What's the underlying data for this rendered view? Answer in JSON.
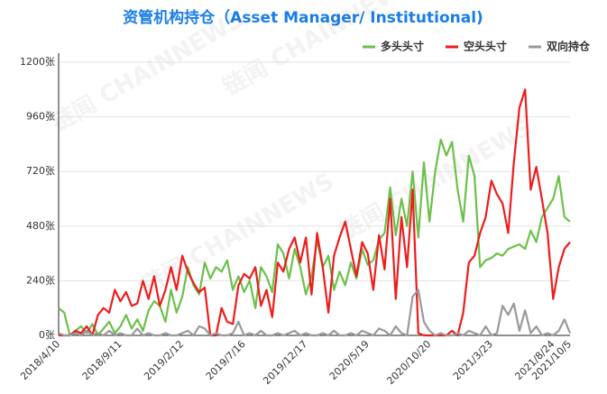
{
  "chart_data": {
    "type": "line",
    "title": "资管机构持仓（Asset Manager/ Institutional)",
    "watermark": "链闻 CHAINNEWS",
    "categories": [
      "2018/4/10",
      null,
      null,
      null,
      null,
      null,
      null,
      null,
      null,
      null,
      null,
      "2018/9/11",
      null,
      null,
      null,
      null,
      null,
      null,
      null,
      null,
      null,
      null,
      "2019/2/12",
      null,
      null,
      null,
      null,
      null,
      null,
      null,
      null,
      null,
      null,
      "2019/7/16",
      null,
      null,
      null,
      null,
      null,
      null,
      null,
      null,
      null,
      null,
      "2019/12/17",
      null,
      null,
      null,
      null,
      null,
      null,
      null,
      null,
      null,
      null,
      "2020/5/19",
      null,
      null,
      null,
      null,
      null,
      null,
      null,
      null,
      null,
      null,
      "2020/10/20",
      null,
      null,
      null,
      null,
      null,
      null,
      null,
      null,
      null,
      null,
      "2021/3/23",
      null,
      null,
      null,
      null,
      null,
      null,
      null,
      null,
      null,
      null,
      "2021/8/24",
      null,
      null,
      "2021/10/5"
    ],
    "series": [
      {
        "name": "多头头寸",
        "color": "#6cc04a",
        "values": [
          120,
          100,
          0,
          20,
          40,
          10,
          50,
          0,
          30,
          60,
          10,
          40,
          90,
          30,
          70,
          20,
          110,
          150,
          130,
          60,
          200,
          100,
          170,
          300,
          220,
          180,
          320,
          250,
          300,
          280,
          330,
          200,
          260,
          190,
          240,
          120,
          300,
          260,
          190,
          400,
          360,
          250,
          380,
          300,
          180,
          260,
          420,
          300,
          350,
          200,
          280,
          220,
          320,
          250,
          380,
          310,
          330,
          420,
          450,
          650,
          440,
          600,
          480,
          720,
          430,
          760,
          500,
          720,
          860,
          790,
          850,
          640,
          500,
          790,
          700,
          300,
          330,
          340,
          360,
          350,
          380,
          390,
          400,
          380,
          460,
          410,
          520,
          560,
          600,
          700,
          520,
          500
        ]
      },
      {
        "name": "空头头寸",
        "color": "#ee1c1c",
        "values": [
          0,
          0,
          0,
          20,
          10,
          40,
          0,
          90,
          120,
          100,
          200,
          150,
          190,
          130,
          140,
          240,
          160,
          260,
          130,
          200,
          300,
          200,
          350,
          280,
          230,
          190,
          210,
          0,
          0,
          120,
          60,
          50,
          220,
          270,
          250,
          300,
          130,
          200,
          80,
          320,
          280,
          380,
          430,
          320,
          430,
          180,
          450,
          300,
          100,
          350,
          430,
          500,
          380,
          260,
          410,
          360,
          200,
          440,
          290,
          600,
          160,
          520,
          300,
          640,
          10,
          0,
          0,
          0,
          0,
          0,
          20,
          0,
          100,
          320,
          350,
          450,
          520,
          680,
          620,
          580,
          450,
          760,
          1000,
          1080,
          640,
          740,
          600,
          450,
          160,
          300,
          380,
          410
        ]
      },
      {
        "name": "双向持仓",
        "color": "#999999",
        "values": [
          10,
          0,
          0,
          10,
          0,
          20,
          0,
          10,
          0,
          20,
          0,
          10,
          0,
          0,
          30,
          0,
          10,
          0,
          0,
          10,
          0,
          0,
          10,
          20,
          0,
          40,
          30,
          0,
          10,
          0,
          0,
          10,
          60,
          0,
          10,
          0,
          20,
          0,
          0,
          10,
          0,
          10,
          20,
          0,
          10,
          0,
          0,
          10,
          0,
          20,
          0,
          0,
          10,
          0,
          20,
          10,
          0,
          30,
          20,
          0,
          40,
          10,
          0,
          170,
          200,
          60,
          20,
          0,
          10,
          0,
          0,
          10,
          0,
          20,
          10,
          0,
          40,
          0,
          10,
          130,
          90,
          140,
          20,
          110,
          10,
          40,
          0,
          10,
          0,
          20,
          70,
          10
        ]
      }
    ],
    "ylim": [
      0,
      1200
    ],
    "yticks": [
      {
        "value": 0,
        "label": "0张"
      },
      {
        "value": 240,
        "label": "240张"
      },
      {
        "value": 480,
        "label": "480张"
      },
      {
        "value": 720,
        "label": "720张"
      },
      {
        "value": 960,
        "label": "960张"
      },
      {
        "value": 1200,
        "label": "1200张"
      }
    ],
    "grid": true,
    "legend": "top-right"
  }
}
